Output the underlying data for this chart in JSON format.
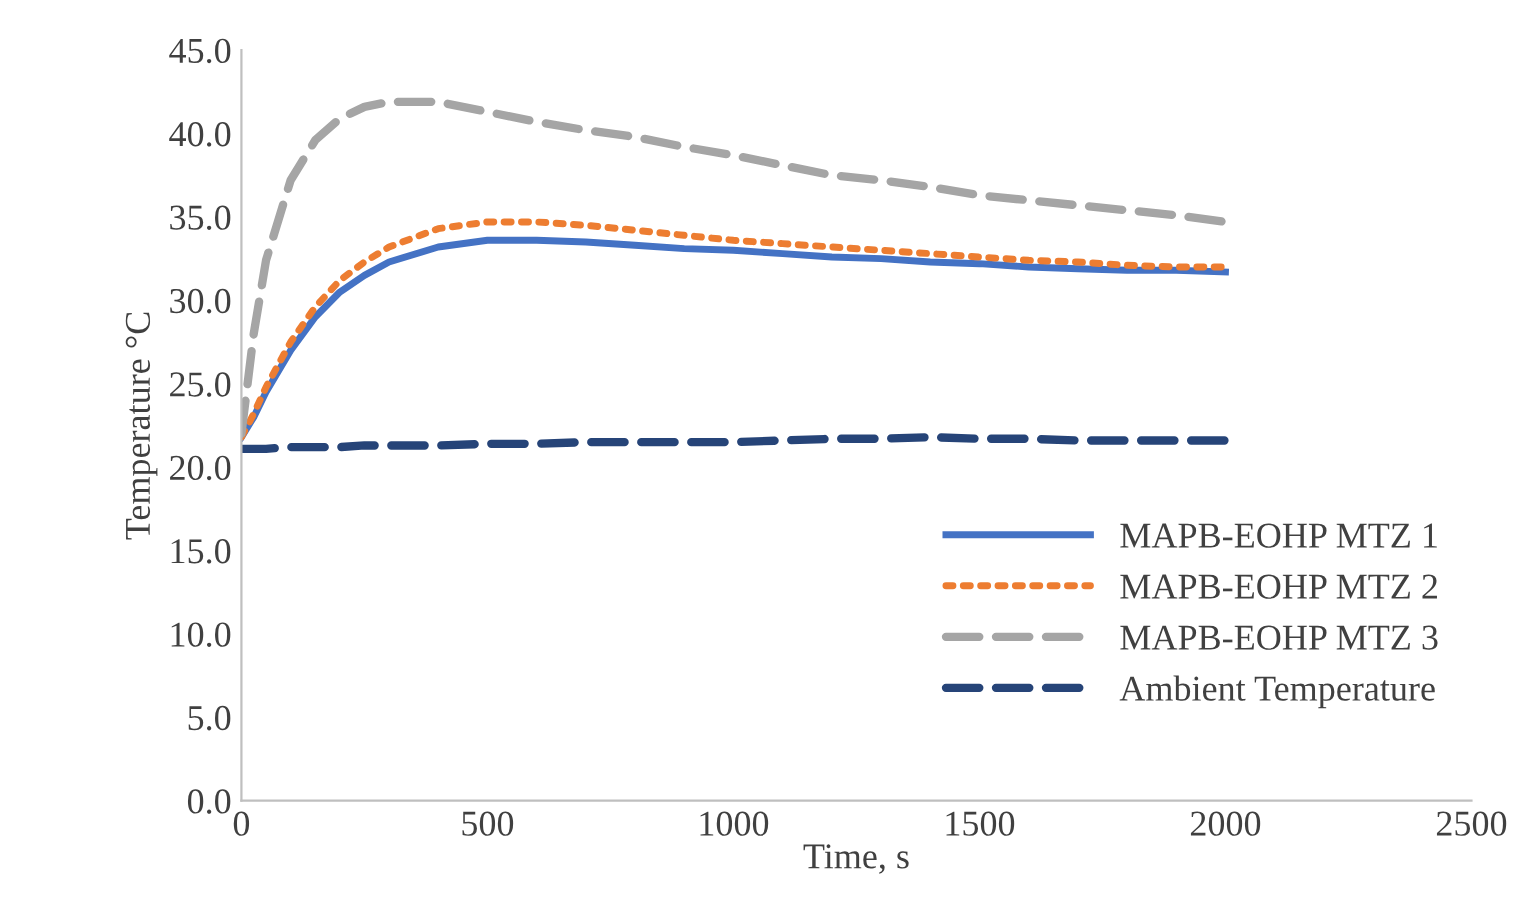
{
  "chart_data": {
    "type": "line",
    "xlabel": "Time, s",
    "ylabel": "Temperature °C",
    "x": [
      0,
      25,
      50,
      100,
      150,
      200,
      250,
      300,
      400,
      500,
      600,
      700,
      800,
      900,
      1000,
      1100,
      1200,
      1300,
      1400,
      1500,
      1600,
      1700,
      1800,
      1900,
      2000
    ],
    "series": [
      {
        "name": "MAPB-EOHP MTZ 1",
        "color": "#4472c4",
        "line_style": "solid",
        "values": [
          21.8,
          23.0,
          24.5,
          27.0,
          29.0,
          30.5,
          31.5,
          32.3,
          33.2,
          33.6,
          33.6,
          33.5,
          33.3,
          33.1,
          33.0,
          32.8,
          32.6,
          32.5,
          32.3,
          32.2,
          32.0,
          31.9,
          31.8,
          31.8,
          31.7
        ]
      },
      {
        "name": "MAPB-EOHP MTZ 2",
        "color": "#ed7d31",
        "line_style": "dotted",
        "values": [
          21.8,
          23.2,
          24.8,
          27.5,
          29.6,
          31.2,
          32.3,
          33.2,
          34.3,
          34.7,
          34.7,
          34.5,
          34.2,
          33.9,
          33.6,
          33.4,
          33.2,
          33.0,
          32.8,
          32.6,
          32.4,
          32.3,
          32.1,
          32.0,
          32.0
        ]
      },
      {
        "name": "MAPB-EOHP MTZ 3",
        "color": "#a5a5a5",
        "line_style": "dashed",
        "values": [
          22.0,
          28.0,
          32.4,
          37.2,
          39.6,
          40.9,
          41.6,
          41.9,
          41.9,
          41.3,
          40.7,
          40.2,
          39.8,
          39.2,
          38.7,
          38.1,
          37.5,
          37.2,
          36.8,
          36.3,
          36.0,
          35.7,
          35.4,
          35.1,
          34.7
        ]
      },
      {
        "name": "Ambient Temperature",
        "color": "#264478",
        "line_style": "dashed",
        "values": [
          21.1,
          21.1,
          21.1,
          21.2,
          21.2,
          21.2,
          21.3,
          21.3,
          21.3,
          21.4,
          21.4,
          21.5,
          21.5,
          21.5,
          21.5,
          21.6,
          21.7,
          21.7,
          21.8,
          21.7,
          21.7,
          21.6,
          21.6,
          21.6,
          21.6
        ]
      }
    ],
    "xlim": [
      0,
      2500
    ],
    "xticks": [
      0,
      500,
      1000,
      1500,
      2000,
      2500
    ],
    "ylim": [
      0,
      45
    ],
    "yticks": [
      {
        "value": 0,
        "label": "0.0"
      },
      {
        "value": 5,
        "label": "5.0"
      },
      {
        "value": 10,
        "label": "10.0"
      },
      {
        "value": 15,
        "label": "15.0"
      },
      {
        "value": 20,
        "label": "20.0"
      },
      {
        "value": 25,
        "label": "25.0"
      },
      {
        "value": 30,
        "label": "30.0"
      },
      {
        "value": 35,
        "label": "35.0"
      },
      {
        "value": 40,
        "label": "40.0"
      },
      {
        "value": 45,
        "label": "45.0"
      }
    ],
    "grid": false,
    "legend": "bottom right"
  }
}
